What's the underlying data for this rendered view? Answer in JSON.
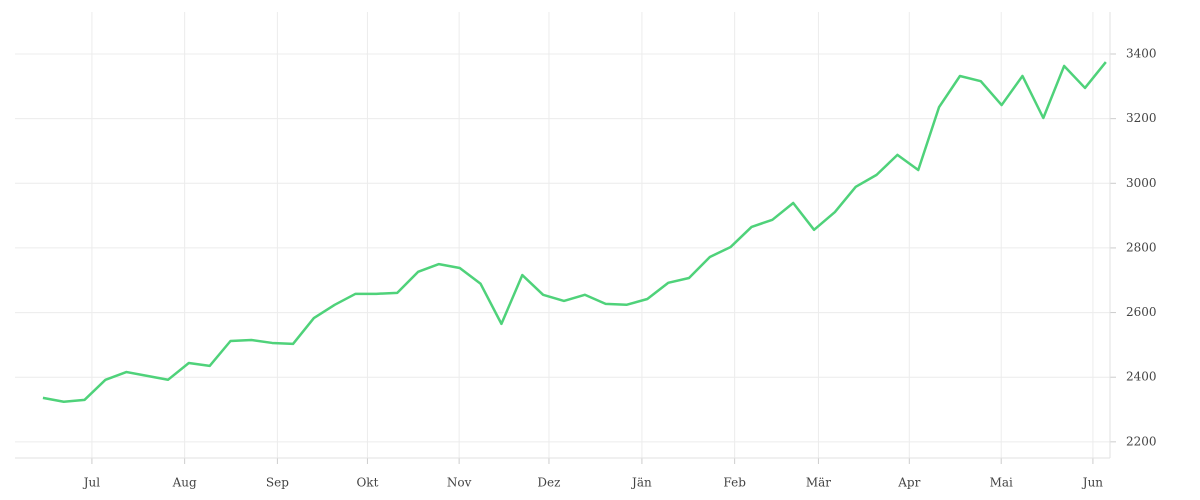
{
  "chart_data": {
    "type": "line",
    "x": [
      0,
      1,
      2,
      3,
      4,
      5,
      6,
      7,
      8,
      9,
      10,
      11,
      12,
      13,
      14,
      15,
      16,
      17,
      18,
      19,
      20,
      21,
      22,
      23,
      24,
      25,
      26,
      27,
      28,
      29,
      30,
      31,
      32,
      33,
      34,
      35,
      36,
      37,
      38,
      39,
      40,
      41,
      42,
      43,
      44,
      45,
      46,
      47,
      48,
      49,
      50,
      51
    ],
    "series": [
      {
        "color": "#4fd27a",
        "values": [
          2336,
          2324,
          2330,
          2392,
          2416,
          2404,
          2392,
          2444,
          2435,
          2512,
          2515,
          2506,
          2503,
          2583,
          2624,
          2658,
          2658,
          2661,
          2726,
          2750,
          2738,
          2689,
          2565,
          2716,
          2655,
          2636,
          2655,
          2627,
          2624,
          2642,
          2692,
          2707,
          2772,
          2803,
          2865,
          2887,
          2939,
          2856,
          2911,
          2989,
          3026,
          3088,
          3041,
          3236,
          3332,
          3316,
          3242,
          3332,
          3202,
          3363,
          3295,
          3375
        ]
      }
    ],
    "xlim": [
      -1.34,
      51.2
    ],
    "xticks": [
      {
        "value": 2.35,
        "label": "Jul"
      },
      {
        "value": 6.8,
        "label": "Aug"
      },
      {
        "value": 11.25,
        "label": "Sep"
      },
      {
        "value": 15.57,
        "label": "Okt"
      },
      {
        "value": 19.97,
        "label": "Nov"
      },
      {
        "value": 24.28,
        "label": "Dez"
      },
      {
        "value": 28.74,
        "label": "Jän"
      },
      {
        "value": 33.19,
        "label": "Feb"
      },
      {
        "value": 37.21,
        "label": "Mär"
      },
      {
        "value": 41.57,
        "label": "Apr"
      },
      {
        "value": 45.98,
        "label": "Mai"
      },
      {
        "value": 50.38,
        "label": "Jun"
      }
    ],
    "ylim": [
      2150,
      3530
    ],
    "yticks": [
      2200,
      2400,
      2600,
      2800,
      3000,
      3200,
      3400
    ],
    "grid": true
  }
}
